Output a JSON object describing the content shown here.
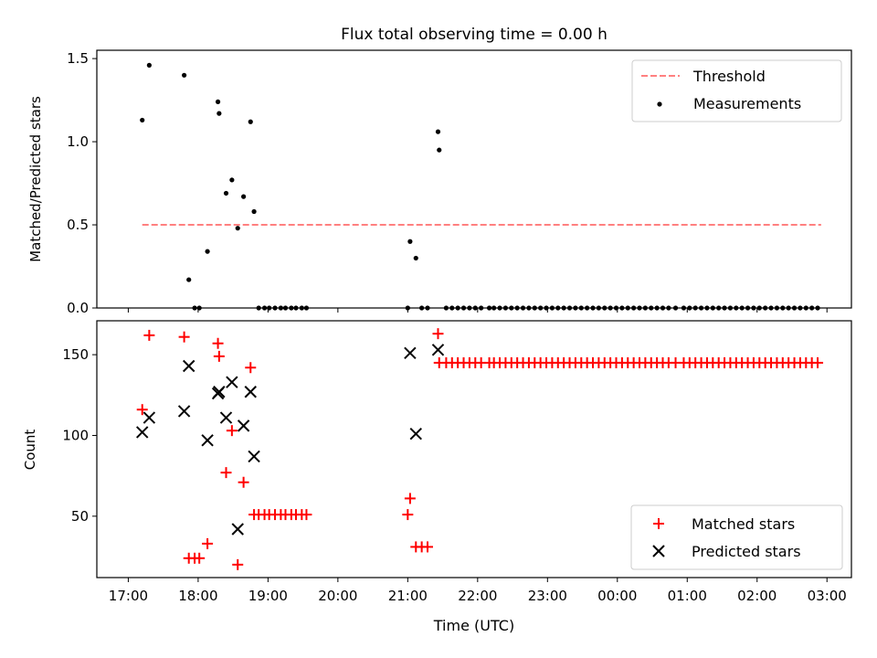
{
  "title": "Flux total observing time = 0.00 h",
  "x_axis": {
    "label": "Time (UTC)",
    "ticks": [
      "17:00",
      "18:00",
      "19:00",
      "20:00",
      "21:00",
      "22:00",
      "23:00",
      "00:00",
      "01:00",
      "02:00",
      "03:00"
    ]
  },
  "chart_data": [
    {
      "type": "scatter",
      "ylabel": "Matched/Predicted stars",
      "ylim": [
        0,
        1.55
      ],
      "yticks": [
        "0.0",
        "0.5",
        "1.0",
        "1.5"
      ],
      "legend": {
        "placement": "top-right"
      },
      "threshold": {
        "name": "Threshold",
        "value": 0.5,
        "x_range": [
          "17:12",
          "02:55"
        ],
        "color": "#ff8080"
      },
      "measurements": {
        "name": "Measurements",
        "color": "#000000",
        "points": [
          [
            "17:12",
            1.13
          ],
          [
            "17:18",
            1.46
          ],
          [
            "17:48",
            1.4
          ],
          [
            "17:52",
            0.17
          ],
          [
            "17:57",
            0.0
          ],
          [
            "18:01",
            0.0
          ],
          [
            "18:08",
            0.34
          ],
          [
            "18:17",
            1.24
          ],
          [
            "18:18",
            1.17
          ],
          [
            "18:24",
            0.69
          ],
          [
            "18:29",
            0.77
          ],
          [
            "18:34",
            0.48
          ],
          [
            "18:39",
            0.67
          ],
          [
            "18:45",
            1.12
          ],
          [
            "18:48",
            0.58
          ],
          [
            "18:52",
            0.0
          ],
          [
            "18:57",
            0.0
          ],
          [
            "19:01",
            0.0
          ],
          [
            "19:06",
            0.0
          ],
          [
            "19:11",
            0.0
          ],
          [
            "19:15",
            0.0
          ],
          [
            "19:20",
            0.0
          ],
          [
            "19:24",
            0.0
          ],
          [
            "19:29",
            0.0
          ],
          [
            "19:33",
            0.0
          ],
          [
            "21:00",
            0.0
          ],
          [
            "21:02",
            0.4
          ],
          [
            "21:07",
            0.3
          ],
          [
            "21:12",
            0.0
          ],
          [
            "21:17",
            0.0
          ],
          [
            "21:26",
            1.06
          ],
          [
            "21:27",
            0.95
          ],
          [
            "21:33",
            0.0
          ],
          [
            "21:38",
            0.0
          ],
          [
            "21:43",
            0.0
          ],
          [
            "21:48",
            0.0
          ],
          [
            "21:53",
            0.0
          ],
          [
            "21:58",
            0.0
          ],
          [
            "22:03",
            0.0
          ],
          [
            "22:10",
            0.0
          ],
          [
            "22:14",
            0.0
          ],
          [
            "22:19",
            0.0
          ],
          [
            "22:24",
            0.0
          ],
          [
            "22:29",
            0.0
          ],
          [
            "22:34",
            0.0
          ],
          [
            "22:39",
            0.0
          ],
          [
            "22:44",
            0.0
          ],
          [
            "22:49",
            0.0
          ],
          [
            "22:54",
            0.0
          ],
          [
            "22:59",
            0.0
          ],
          [
            "23:04",
            0.0
          ],
          [
            "23:09",
            0.0
          ],
          [
            "23:14",
            0.0
          ],
          [
            "23:19",
            0.0
          ],
          [
            "23:24",
            0.0
          ],
          [
            "23:29",
            0.0
          ],
          [
            "23:34",
            0.0
          ],
          [
            "23:39",
            0.0
          ],
          [
            "23:44",
            0.0
          ],
          [
            "23:49",
            0.0
          ],
          [
            "23:54",
            0.0
          ],
          [
            "23:59",
            0.0
          ],
          [
            "00:04",
            0.0
          ],
          [
            "00:09",
            0.0
          ],
          [
            "00:14",
            0.0
          ],
          [
            "00:19",
            0.0
          ],
          [
            "00:24",
            0.0
          ],
          [
            "00:29",
            0.0
          ],
          [
            "00:34",
            0.0
          ],
          [
            "00:39",
            0.0
          ],
          [
            "00:44",
            0.0
          ],
          [
            "00:50",
            0.0
          ],
          [
            "00:57",
            0.0
          ],
          [
            "01:02",
            0.0
          ],
          [
            "01:07",
            0.0
          ],
          [
            "01:12",
            0.0
          ],
          [
            "01:17",
            0.0
          ],
          [
            "01:22",
            0.0
          ],
          [
            "01:27",
            0.0
          ],
          [
            "01:32",
            0.0
          ],
          [
            "01:37",
            0.0
          ],
          [
            "01:42",
            0.0
          ],
          [
            "01:47",
            0.0
          ],
          [
            "01:52",
            0.0
          ],
          [
            "01:57",
            0.0
          ],
          [
            "02:02",
            0.0
          ],
          [
            "02:07",
            0.0
          ],
          [
            "02:12",
            0.0
          ],
          [
            "02:17",
            0.0
          ],
          [
            "02:22",
            0.0
          ],
          [
            "02:27",
            0.0
          ],
          [
            "02:32",
            0.0
          ],
          [
            "02:37",
            0.0
          ],
          [
            "02:42",
            0.0
          ],
          [
            "02:47",
            0.0
          ],
          [
            "02:52",
            0.0
          ]
        ]
      }
    },
    {
      "type": "scatter",
      "ylabel": "Count",
      "ylim": [
        12,
        171
      ],
      "yticks": [
        "50",
        "100",
        "150"
      ],
      "legend": {
        "placement": "bottom-right"
      },
      "series": [
        {
          "name": "Matched stars",
          "marker": "+",
          "color": "#ff0000",
          "points": [
            [
              "17:12",
              116
            ],
            [
              "17:18",
              162
            ],
            [
              "17:48",
              161
            ],
            [
              "17:52",
              24
            ],
            [
              "17:57",
              24
            ],
            [
              "18:01",
              24
            ],
            [
              "18:08",
              33
            ],
            [
              "18:17",
              157
            ],
            [
              "18:18",
              149
            ],
            [
              "18:24",
              77
            ],
            [
              "18:29",
              103
            ],
            [
              "18:34",
              20
            ],
            [
              "18:39",
              71
            ],
            [
              "18:45",
              142
            ],
            [
              "18:48",
              51
            ],
            [
              "18:52",
              51
            ],
            [
              "18:57",
              51
            ],
            [
              "19:01",
              51
            ],
            [
              "19:06",
              51
            ],
            [
              "19:11",
              51
            ],
            [
              "19:15",
              51
            ],
            [
              "19:20",
              51
            ],
            [
              "19:24",
              51
            ],
            [
              "19:29",
              51
            ],
            [
              "19:33",
              51
            ],
            [
              "21:00",
              51
            ],
            [
              "21:02",
              61
            ],
            [
              "21:07",
              31
            ],
            [
              "21:12",
              31
            ],
            [
              "21:17",
              31
            ],
            [
              "21:26",
              163
            ],
            [
              "21:27",
              145
            ],
            [
              "21:33",
              145
            ],
            [
              "21:38",
              145
            ],
            [
              "21:43",
              145
            ],
            [
              "21:48",
              145
            ],
            [
              "21:53",
              145
            ],
            [
              "21:58",
              145
            ],
            [
              "22:03",
              145
            ],
            [
              "22:10",
              145
            ],
            [
              "22:14",
              145
            ],
            [
              "22:19",
              145
            ],
            [
              "22:24",
              145
            ],
            [
              "22:29",
              145
            ],
            [
              "22:34",
              145
            ],
            [
              "22:39",
              145
            ],
            [
              "22:44",
              145
            ],
            [
              "22:49",
              145
            ],
            [
              "22:54",
              145
            ],
            [
              "22:59",
              145
            ],
            [
              "23:04",
              145
            ],
            [
              "23:09",
              145
            ],
            [
              "23:14",
              145
            ],
            [
              "23:19",
              145
            ],
            [
              "23:24",
              145
            ],
            [
              "23:29",
              145
            ],
            [
              "23:34",
              145
            ],
            [
              "23:39",
              145
            ],
            [
              "23:44",
              145
            ],
            [
              "23:49",
              145
            ],
            [
              "23:54",
              145
            ],
            [
              "23:59",
              145
            ],
            [
              "00:04",
              145
            ],
            [
              "00:09",
              145
            ],
            [
              "00:14",
              145
            ],
            [
              "00:19",
              145
            ],
            [
              "00:24",
              145
            ],
            [
              "00:29",
              145
            ],
            [
              "00:34",
              145
            ],
            [
              "00:39",
              145
            ],
            [
              "00:44",
              145
            ],
            [
              "00:50",
              145
            ],
            [
              "00:57",
              145
            ],
            [
              "01:02",
              145
            ],
            [
              "01:07",
              145
            ],
            [
              "01:12",
              145
            ],
            [
              "01:17",
              145
            ],
            [
              "01:22",
              145
            ],
            [
              "01:27",
              145
            ],
            [
              "01:32",
              145
            ],
            [
              "01:37",
              145
            ],
            [
              "01:42",
              145
            ],
            [
              "01:47",
              145
            ],
            [
              "01:52",
              145
            ],
            [
              "01:57",
              145
            ],
            [
              "02:02",
              145
            ],
            [
              "02:07",
              145
            ],
            [
              "02:12",
              145
            ],
            [
              "02:17",
              145
            ],
            [
              "02:22",
              145
            ],
            [
              "02:27",
              145
            ],
            [
              "02:32",
              145
            ],
            [
              "02:37",
              145
            ],
            [
              "02:42",
              145
            ],
            [
              "02:47",
              145
            ],
            [
              "02:52",
              145
            ]
          ]
        },
        {
          "name": "Predicted stars",
          "marker": "x",
          "color": "#000000",
          "points": [
            [
              "17:12",
              102
            ],
            [
              "17:18",
              111
            ],
            [
              "17:48",
              115
            ],
            [
              "17:52",
              143
            ],
            [
              "18:08",
              97
            ],
            [
              "18:17",
              126
            ],
            [
              "18:18",
              127
            ],
            [
              "18:24",
              111
            ],
            [
              "18:29",
              133
            ],
            [
              "18:34",
              42
            ],
            [
              "18:39",
              106
            ],
            [
              "18:45",
              127
            ],
            [
              "18:48",
              87
            ],
            [
              "21:02",
              151
            ],
            [
              "21:07",
              101
            ],
            [
              "21:26",
              153
            ]
          ]
        }
      ]
    }
  ]
}
